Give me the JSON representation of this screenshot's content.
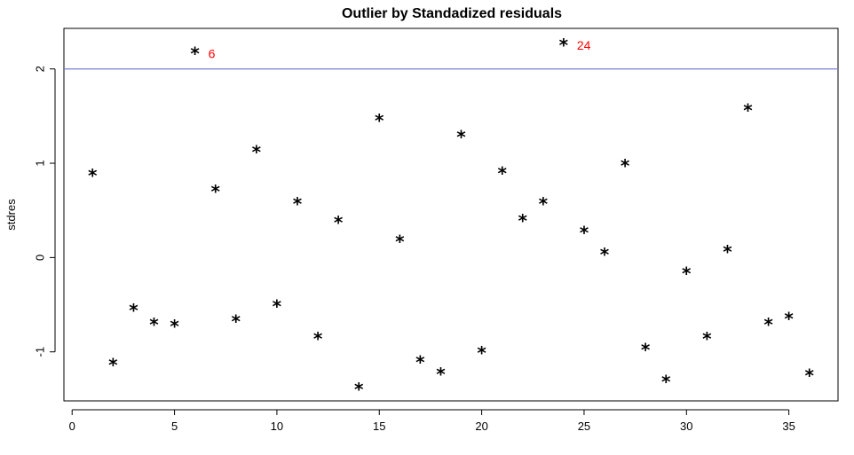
{
  "chart_data": {
    "type": "scatter",
    "title": "Outlier by Standadized residuals",
    "xlabel": "",
    "ylabel": "stdres",
    "xlim": [
      -0.4,
      37.4
    ],
    "ylim": [
      -1.52,
      2.43
    ],
    "x_ticks": [
      0,
      5,
      10,
      15,
      20,
      25,
      30,
      35
    ],
    "y_ticks": [
      -1,
      0,
      1,
      2
    ],
    "x_tick_labels": [
      "0",
      "5",
      "10",
      "15",
      "20",
      "25",
      "30",
      "35"
    ],
    "y_tick_labels": [
      "-1",
      "0",
      "1",
      "2"
    ],
    "grid": false,
    "marker": "*",
    "threshold_line": {
      "y": 2,
      "color": "#7b7bd9"
    },
    "x": [
      1,
      2,
      3,
      4,
      5,
      6,
      7,
      8,
      9,
      10,
      11,
      12,
      13,
      14,
      15,
      16,
      17,
      18,
      19,
      20,
      21,
      22,
      23,
      24,
      25,
      26,
      27,
      28,
      29,
      30,
      31,
      32,
      33,
      34,
      35,
      36
    ],
    "y": [
      0.87,
      -1.14,
      -0.56,
      -0.71,
      -0.73,
      2.16,
      0.7,
      -0.68,
      1.12,
      -0.52,
      0.57,
      -0.86,
      0.37,
      -1.4,
      1.45,
      0.17,
      -1.11,
      -1.24,
      1.28,
      -1.01,
      0.89,
      0.39,
      0.57,
      2.25,
      0.26,
      0.03,
      0.97,
      -0.98,
      -1.32,
      -0.17,
      -0.86,
      0.06,
      1.56,
      -0.71,
      -0.65,
      -1.25
    ],
    "annotations": [
      {
        "x": 6,
        "y": 2.16,
        "text": "6",
        "color": "#ff0000"
      },
      {
        "x": 24,
        "y": 2.25,
        "text": "24",
        "color": "#ff0000"
      }
    ],
    "colors": {
      "points": "#000000",
      "labels": "#ff0000",
      "axes": "#000000",
      "background": "#ffffff"
    }
  }
}
